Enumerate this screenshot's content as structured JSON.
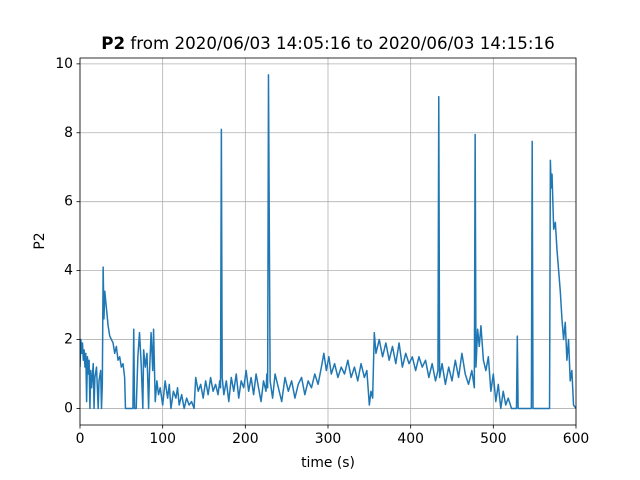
{
  "chart_data": {
    "type": "line",
    "title_parts": [
      "P2",
      " from 2020/06/03 14:05:16 to 2020/06/03 14:15:16"
    ],
    "xlabel": "time (s)",
    "ylabel": "P2",
    "x": [
      0,
      1,
      2,
      3,
      4,
      5,
      6,
      7,
      8,
      9,
      10,
      11,
      12,
      13,
      14,
      16,
      17,
      18,
      20,
      22,
      23,
      25,
      26,
      27,
      28,
      29,
      30,
      32,
      34,
      36,
      38,
      40,
      42,
      44,
      46,
      48,
      50,
      52,
      54,
      55,
      58,
      62,
      64,
      65,
      66,
      68,
      70,
      72,
      74,
      76,
      77,
      79,
      81,
      83,
      84,
      86,
      88,
      89,
      91,
      93,
      95,
      97,
      100,
      103,
      106,
      108,
      110,
      113,
      116,
      118,
      120,
      123,
      126,
      129,
      132,
      135,
      138,
      140,
      143,
      146,
      149,
      152,
      155,
      158,
      161,
      164,
      167,
      169,
      170,
      171,
      172,
      174,
      177,
      180,
      183,
      186,
      189,
      192,
      195,
      198,
      201,
      204,
      207,
      210,
      213,
      216,
      219,
      222,
      225,
      226,
      227,
      228,
      230,
      233,
      236,
      240,
      244,
      248,
      252,
      256,
      260,
      264,
      268,
      272,
      276,
      280,
      284,
      288,
      292,
      295,
      298,
      301,
      304,
      308,
      312,
      316,
      320,
      324,
      328,
      332,
      336,
      340,
      344,
      347,
      350,
      352,
      354,
      356,
      358,
      362,
      366,
      370,
      374,
      378,
      382,
      386,
      390,
      394,
      398,
      402,
      406,
      410,
      414,
      418,
      422,
      426,
      430,
      433,
      434,
      435,
      438,
      442,
      446,
      450,
      454,
      458,
      462,
      466,
      470,
      474,
      477,
      478,
      479,
      481,
      483,
      485,
      488,
      491,
      494,
      497,
      500,
      503,
      506,
      509,
      512,
      515,
      518,
      522,
      526,
      528,
      529,
      530,
      535,
      540,
      546,
      547,
      548,
      555,
      562,
      567,
      568,
      569,
      570,
      571,
      573,
      575,
      577,
      579,
      581,
      583,
      585,
      587,
      589,
      591,
      593,
      595,
      597,
      600
    ],
    "series": [
      {
        "name": "P2",
        "color": "#1f77b4",
        "values": [
          1.2,
          2.0,
          1.6,
          1.9,
          1.4,
          1.7,
          1.2,
          1.6,
          0.2,
          1.5,
          1.0,
          1.4,
          0,
          1.1,
          0.6,
          1.3,
          0,
          0.9,
          1.2,
          0,
          0.8,
          1.1,
          0,
          0.7,
          4.1,
          2.6,
          3.4,
          2.9,
          2.4,
          2.1,
          2.0,
          1.9,
          1.6,
          1.8,
          1.4,
          1.5,
          1.2,
          1.3,
          0.9,
          0,
          0,
          0,
          0,
          2.3,
          0,
          0,
          1.5,
          2.2,
          1.3,
          0,
          1.7,
          1.2,
          1.6,
          0,
          1.0,
          2.2,
          1.1,
          2.3,
          0.2,
          0.8,
          0.4,
          0.6,
          0.1,
          0.8,
          0.3,
          0.7,
          0,
          0.5,
          0.3,
          0.6,
          0.1,
          0.4,
          0,
          0.3,
          0.1,
          0.2,
          0,
          0.9,
          0.5,
          0.7,
          0.3,
          0.8,
          0.4,
          0.9,
          0.5,
          0.7,
          0.4,
          0.8,
          0.6,
          8.1,
          0.9,
          0.4,
          0.8,
          0.2,
          0.9,
          0.5,
          1.0,
          0.3,
          0.8,
          0.6,
          1.1,
          0.5,
          0.9,
          0.4,
          1.0,
          0.6,
          0.2,
          0.8,
          0.5,
          1.0,
          0.6,
          9.68,
          0.8,
          0.3,
          1.0,
          0.6,
          0.2,
          0.9,
          0.5,
          0.8,
          0.3,
          0.7,
          0.9,
          0.4,
          0.8,
          0.6,
          1.0,
          0.7,
          1.2,
          1.6,
          1.1,
          1.5,
          1.0,
          1.3,
          0.9,
          1.2,
          1.0,
          1.4,
          0.9,
          1.2,
          0.8,
          1.3,
          0.9,
          1.1,
          0.1,
          0.5,
          0.3,
          2.2,
          1.6,
          2.0,
          1.5,
          1.9,
          1.4,
          1.8,
          1.3,
          1.9,
          1.2,
          1.6,
          1.3,
          1.5,
          1.1,
          1.5,
          1.2,
          1.4,
          0.9,
          1.3,
          0.8,
          1.1,
          9.05,
          0.9,
          1.3,
          0.7,
          1.2,
          0.8,
          1.4,
          0.9,
          1.6,
          1.0,
          0.7,
          1.1,
          0.6,
          7.95,
          1.2,
          2.3,
          1.8,
          2.4,
          1.4,
          1.1,
          1.5,
          0.5,
          1.0,
          0.2,
          0.7,
          0,
          0.5,
          0.1,
          0.3,
          0,
          0,
          0,
          2.1,
          0,
          0,
          0,
          0,
          7.75,
          0,
          0,
          0,
          0,
          0,
          7.2,
          6.4,
          6.8,
          5.2,
          5.4,
          4.6,
          4.0,
          3.4,
          2.6,
          2.0,
          2.5,
          1.4,
          2.0,
          0.8,
          1.1,
          0.1,
          0
        ]
      }
    ],
    "xlim": [
      0,
      600
    ],
    "xticks": [
      0,
      100,
      200,
      300,
      400,
      500,
      600
    ],
    "ylim": [
      -0.48,
      10.17
    ],
    "yticks": [
      0,
      2,
      4,
      6,
      8,
      10
    ],
    "grid": true
  }
}
